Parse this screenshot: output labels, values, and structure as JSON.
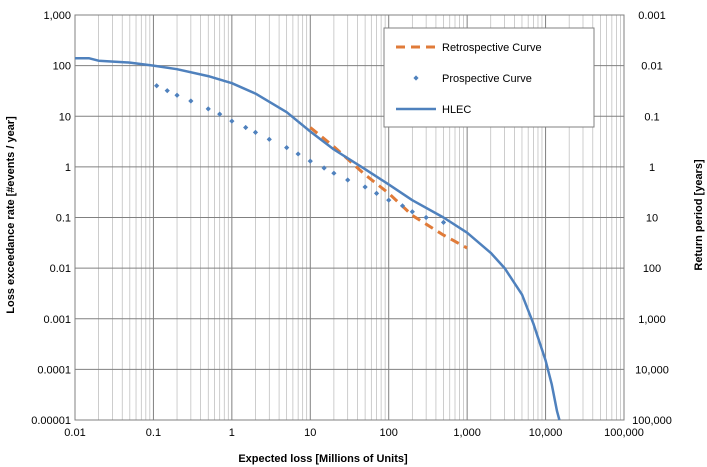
{
  "chart_data": {
    "type": "line",
    "title": "",
    "xlabel": "Expected loss [Millions of Units]",
    "ylabel": "Loss exceedance rate [#events / year]",
    "y2label": "Return period [years]",
    "xscale": "log",
    "yscale": "log",
    "xlim": [
      0.01,
      100000
    ],
    "ylim": [
      1e-05,
      1000
    ],
    "grid": true,
    "legend_position": "top-right",
    "x_tick_labels": [
      "0.01",
      "0.1",
      "1",
      "10",
      "100",
      "1,000",
      "10,000",
      "100,000"
    ],
    "y_tick_labels": [
      "0.00001",
      "0.0001",
      "0.001",
      "0.01",
      "0.1",
      "1",
      "10",
      "100",
      "1,000"
    ],
    "y2_tick_labels": [
      "100,000",
      "10,000",
      "1,000",
      "100",
      "10",
      "1",
      "0.1",
      "0.01",
      "0.001"
    ],
    "series": [
      {
        "name": "Retrospective Curve",
        "style": "dashed",
        "color": "#e07b39",
        "x": [
          10,
          20,
          50,
          100,
          200,
          500,
          1000
        ],
        "y": [
          6,
          2.5,
          0.7,
          0.3,
          0.11,
          0.045,
          0.025
        ]
      },
      {
        "name": "Prospective Curve",
        "style": "markers",
        "color": "#4f81bd",
        "x": [
          0.11,
          0.15,
          0.2,
          0.3,
          0.5,
          0.7,
          1,
          1.5,
          2,
          3,
          5,
          7,
          10,
          15,
          20,
          30,
          50,
          70,
          100,
          150,
          200,
          300,
          500
        ],
        "y": [
          40,
          32,
          26,
          20,
          14,
          11,
          8,
          6,
          4.8,
          3.5,
          2.4,
          1.8,
          1.3,
          0.95,
          0.75,
          0.55,
          0.4,
          0.3,
          0.22,
          0.17,
          0.13,
          0.1,
          0.08
        ]
      },
      {
        "name": "HLEC",
        "style": "solid",
        "color": "#4f81bd",
        "x": [
          0.01,
          0.015,
          0.02,
          0.05,
          0.1,
          0.2,
          0.5,
          1,
          2,
          5,
          10,
          20,
          50,
          100,
          200,
          500,
          1000,
          2000,
          3000,
          5000,
          7000,
          10000,
          12000,
          14000,
          15000
        ],
        "y": [
          140,
          140,
          125,
          115,
          100,
          85,
          62,
          45,
          28,
          12,
          5,
          2.2,
          0.9,
          0.45,
          0.22,
          0.1,
          0.05,
          0.02,
          0.01,
          0.003,
          0.0008,
          0.00015,
          5e-05,
          1.5e-05,
          1e-05
        ]
      }
    ]
  }
}
